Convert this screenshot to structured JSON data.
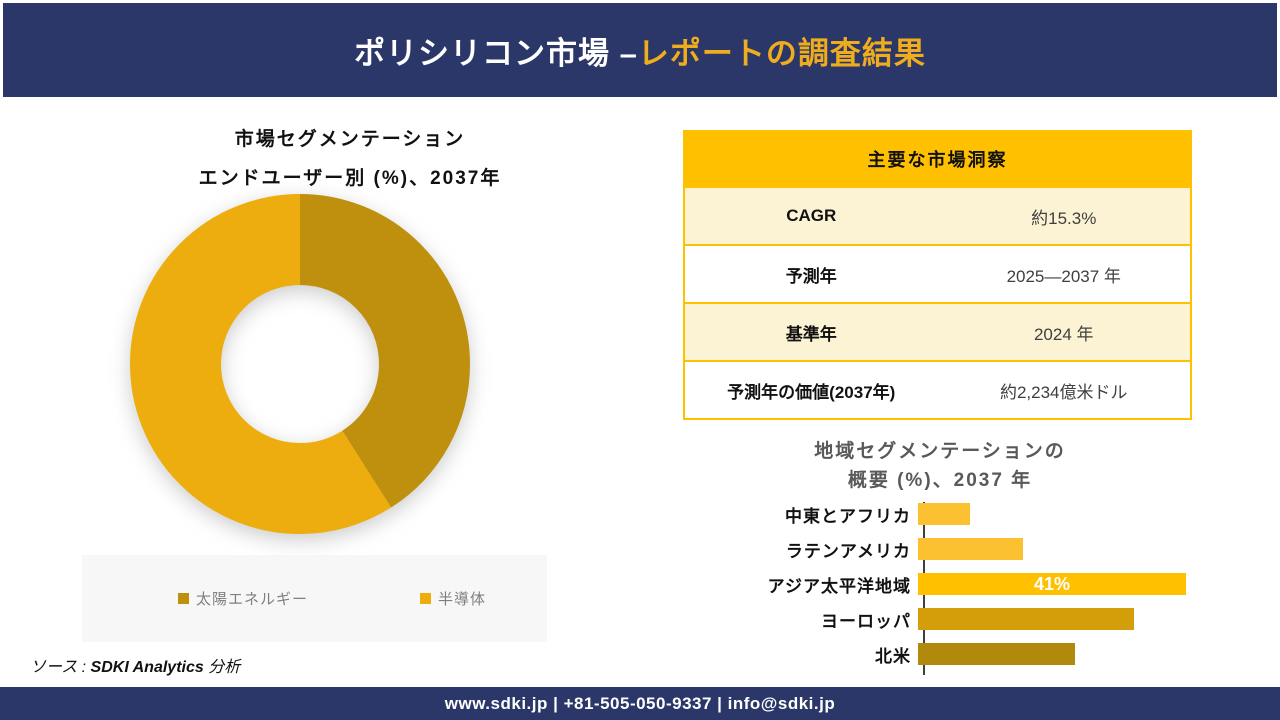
{
  "header": {
    "title_white": "ポリシリコン市場 –",
    "title_gold": "レポートの調査結果"
  },
  "pie_section": {
    "title_line1": "市場セグメンテーション",
    "title_line2": "エンドユーザー別 (%)、2037年"
  },
  "insights_table": {
    "header": "主要な市場洞察",
    "rows": [
      {
        "label": "CAGR",
        "value": "約15.3%"
      },
      {
        "label": "予測年",
        "value": "2025—2037 年"
      },
      {
        "label": "基準年",
        "value": "2024 年"
      },
      {
        "label": "予測年の価値(2037年)",
        "value": "約2,234億米ドル"
      }
    ]
  },
  "bar_section": {
    "title_line1": "地域セグメンテーションの",
    "title_line2": "概要 (%)、2037 年"
  },
  "source": {
    "prefix": "ソース : ",
    "brand": "SDKI Analytics",
    "suffix": " 分析"
  },
  "footer": {
    "contact": "www.sdki.jp | +81-505-050-9337 | info@sdki.jp"
  },
  "colors": {
    "navy": "#2B3768",
    "header_title_gold": "#EFAD1D",
    "table_gold": "#FFC000",
    "table_cream": "#FCF2D4",
    "legend_bg": "#F7F7F7",
    "axis_line": "#3F3F3F"
  },
  "chart_data": [
    {
      "type": "pie",
      "subtype": "donut",
      "title": "市場セグメンテーション エンドユーザー別 (%)、2037年",
      "categories": [
        "太陽エネルギー",
        "半導体"
      ],
      "values": [
        41,
        59
      ],
      "colors": [
        "#BE900D",
        "#EDAD0E"
      ],
      "start_angle_deg": 0,
      "direction": "clockwise",
      "legend_position": "bottom",
      "data_labels": false
    },
    {
      "type": "bar",
      "orientation": "horizontal",
      "title": "地域セグメンテーションの 概要 (%)、2037 年",
      "categories": [
        "中東とアフリカ",
        "ラテンアメリカ",
        "アジア太平洋地域",
        "ヨーロッパ",
        "北米"
      ],
      "values": [
        8,
        16,
        41,
        33,
        24
      ],
      "value_labels": [
        "",
        "",
        "41%",
        "",
        ""
      ],
      "colors": [
        "#FBC130",
        "#FBC130",
        "#FFC000",
        "#D49D0A",
        "#B18A0D"
      ],
      "xlim": [
        0,
        41
      ],
      "grid": false,
      "legend": false
    }
  ]
}
